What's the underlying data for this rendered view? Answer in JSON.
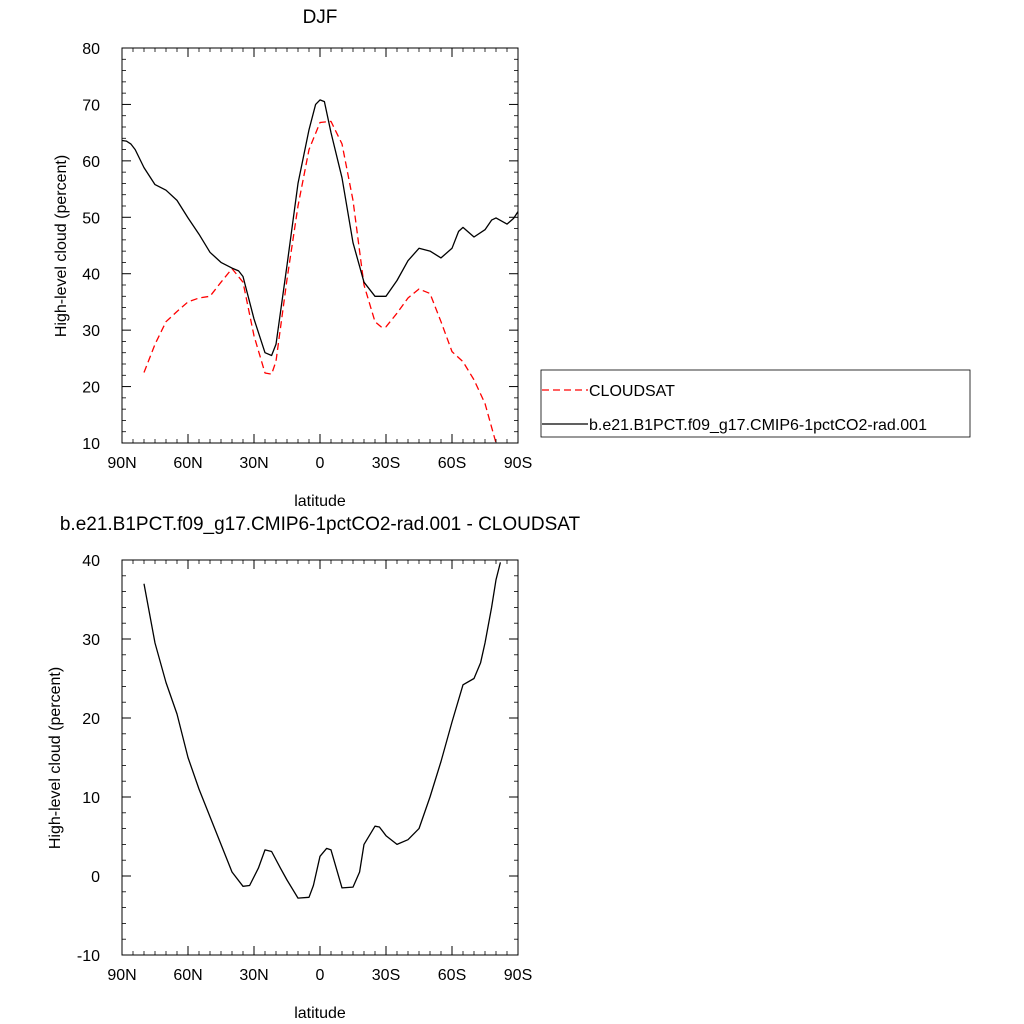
{
  "chart_data": [
    {
      "type": "line",
      "title": "DJF",
      "xlabel": "latitude",
      "ylabel": "High-level cloud (percent)",
      "xlim": [
        90,
        -90
      ],
      "ylim": [
        10,
        80
      ],
      "xticks": [
        90,
        60,
        30,
        0,
        -30,
        -60,
        -90
      ],
      "xtick_labels": [
        "90N",
        "60N",
        "30N",
        "0",
        "30S",
        "60S",
        "90S"
      ],
      "yticks": [
        10,
        20,
        30,
        40,
        50,
        60,
        70,
        80
      ],
      "ytick_labels": [
        "10",
        "20",
        "30",
        "40",
        "50",
        "60",
        "70",
        "80"
      ],
      "grid": false,
      "legend": "right",
      "series": [
        {
          "name": "CLOUDSAT",
          "color": "#ff0000",
          "dash": "dashed",
          "x": [
            80,
            75,
            70,
            65,
            60,
            55,
            50,
            45,
            40,
            35,
            30,
            25,
            22,
            20,
            15,
            10,
            5,
            0,
            -5,
            -10,
            -15,
            -20,
            -25,
            -28,
            -30,
            -35,
            -40,
            -45,
            -50,
            -55,
            -60,
            -65,
            -70,
            -75,
            -80
          ],
          "y": [
            22.5,
            27.5,
            31.5,
            33.3,
            35,
            35.7,
            36,
            38.5,
            40.9,
            38.5,
            29,
            22.4,
            22.2,
            24.5,
            39,
            52,
            62,
            66.8,
            67,
            63,
            53,
            38,
            31.5,
            30.5,
            30.6,
            33,
            35.7,
            37.3,
            36.5,
            31.5,
            26.2,
            24.4,
            21.2,
            17,
            10
          ]
        },
        {
          "name": "b.e21.B1PCT.f09_g17.CMIP6-1pctCO2-rad.001",
          "color": "#000000",
          "dash": "solid",
          "x": [
            90,
            88,
            86,
            84,
            80,
            75,
            70,
            65,
            60,
            55,
            50,
            45,
            40,
            37,
            35,
            30,
            25,
            22,
            20,
            15,
            10,
            5,
            2,
            0,
            -2,
            -5,
            -10,
            -15,
            -20,
            -25,
            -30,
            -35,
            -40,
            -45,
            -50,
            -55,
            -60,
            -63,
            -65,
            -70,
            -75,
            -78,
            -80,
            -85,
            -88,
            -90
          ],
          "y": [
            63.6,
            63.5,
            63,
            62,
            58.8,
            55.8,
            54.8,
            53,
            49.9,
            47,
            43.8,
            42,
            41,
            40.5,
            39.5,
            32,
            26,
            25.5,
            27.5,
            41.5,
            56,
            65.5,
            70,
            70.8,
            70.5,
            65,
            57,
            45.5,
            38.5,
            36,
            36,
            38.8,
            42.3,
            44.5,
            44,
            42.8,
            44.5,
            47.5,
            48.2,
            46.5,
            47.8,
            49.5,
            49.9,
            48.8,
            49.8,
            51
          ]
        }
      ]
    },
    {
      "type": "line",
      "title": "b.e21.B1PCT.f09_g17.CMIP6-1pctCO2-rad.001 - CLOUDSAT",
      "xlabel": "latitude",
      "ylabel": "High-level cloud (percent)",
      "xlim": [
        90,
        -90
      ],
      "ylim": [
        -10,
        40
      ],
      "xticks": [
        90,
        60,
        30,
        0,
        -30,
        -60,
        -90
      ],
      "xtick_labels": [
        "90N",
        "60N",
        "30N",
        "0",
        "30S",
        "60S",
        "90S"
      ],
      "yticks": [
        -10,
        0,
        10,
        20,
        30,
        40
      ],
      "ytick_labels": [
        "-10",
        "0",
        "10",
        "20",
        "30",
        "40"
      ],
      "grid": false,
      "series": [
        {
          "color": "#000000",
          "dash": "solid",
          "x": [
            80,
            75,
            70,
            65,
            60,
            55,
            50,
            45,
            40,
            35,
            32,
            28,
            25,
            22,
            18,
            15,
            10,
            5,
            3,
            0,
            -3,
            -5,
            -10,
            -15,
            -18,
            -20,
            -25,
            -27,
            -30,
            -35,
            -40,
            -45,
            -50,
            -55,
            -60,
            -65,
            -70,
            -73,
            -75,
            -78,
            -80,
            -82
          ],
          "y": [
            37,
            29.5,
            24.5,
            20.5,
            15,
            11,
            7.5,
            4,
            0.5,
            -1.3,
            -1.2,
            1,
            3.3,
            3.1,
            1,
            -0.5,
            -2.8,
            -2.7,
            -1.2,
            2.5,
            3.5,
            3.3,
            -1.5,
            -1.4,
            0.5,
            4,
            6.3,
            6.2,
            5.1,
            4,
            4.6,
            6,
            10,
            14.5,
            19.5,
            24.2,
            25,
            27,
            29.5,
            34,
            37.5,
            39.7
          ]
        }
      ]
    }
  ]
}
